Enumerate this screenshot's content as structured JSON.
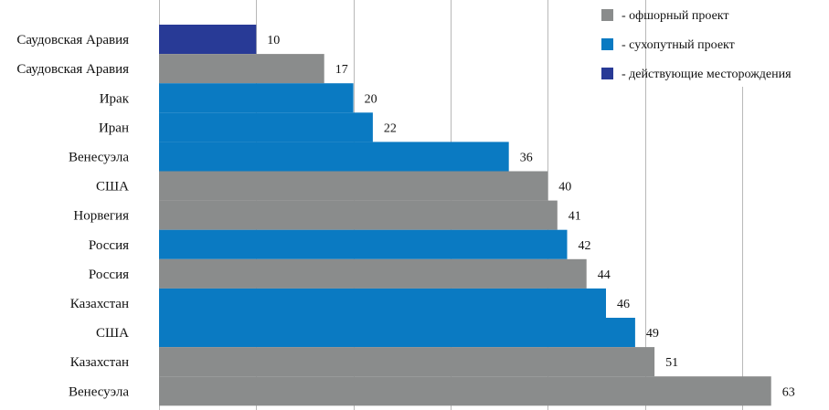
{
  "chart_data": {
    "type": "bar",
    "orientation": "horizontal",
    "title": "",
    "xlabel": "",
    "ylabel": "",
    "xlim": [
      0,
      70
    ],
    "grid": true,
    "categories": [
      "Саудовская Аравия",
      "Саудовская Аравия",
      "Ирак",
      "Иран",
      "Венесуэла",
      "США",
      "Норвегия",
      "Россия",
      "Россия",
      "Казахстан",
      "США",
      "Казахстан",
      "Венесуэла"
    ],
    "values": [
      10,
      17,
      20,
      22,
      36,
      40,
      41,
      42,
      44,
      46,
      49,
      51,
      63
    ],
    "types": [
      "existing",
      "offshore",
      "onshore",
      "onshore",
      "onshore",
      "offshore",
      "offshore",
      "onshore",
      "offshore",
      "onshore",
      "onshore",
      "offshore",
      "offshore"
    ],
    "legend": [
      {
        "key": "offshore",
        "label": "- офшорный проект",
        "color": "#8a8c8c"
      },
      {
        "key": "onshore",
        "label": "- сухопутный проект",
        "color": "#0a7ac2"
      },
      {
        "key": "existing",
        "label": "- действующие месторождения",
        "color": "#283a96"
      }
    ],
    "legend_position": "top-right"
  }
}
